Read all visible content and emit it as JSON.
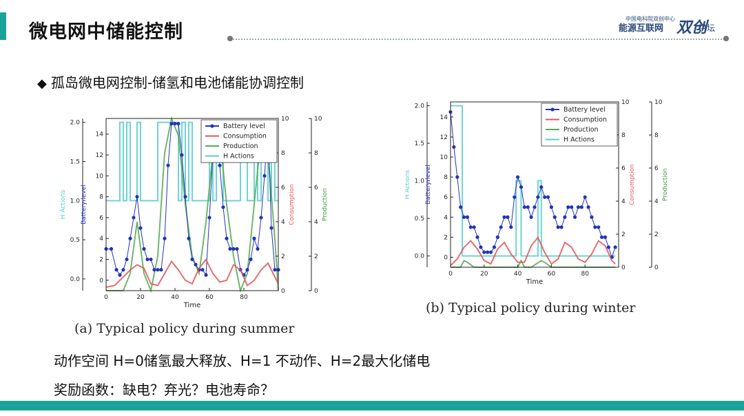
{
  "slide": {
    "title": "微电网中储能控制",
    "bullet": "孤岛微电网控制-储氢和电池储能协调控制",
    "line1": "动作空间 H=0储氢最大释放、H=1 不动作、H=2最大化储电",
    "line2": "奖励函数：缺电？弃光？电池寿命？",
    "colors": {
      "accent": "#1aa39a",
      "bottom_bar": "#1aa39a"
    }
  },
  "logo": {
    "small": "中国电科院双创中心",
    "main": "能源互联网",
    "big": "双创",
    "tail": "讲坛"
  },
  "captions": {
    "summer": "(a) Typical policy during summer",
    "winter": "(b) Typical policy during winter"
  },
  "chart_data": [
    {
      "type": "line",
      "caption": "(a) Typical policy during summer",
      "xlabel": "Time",
      "xlim": [
        0,
        100
      ],
      "xticks": [
        0,
        20,
        40,
        60,
        80
      ],
      "axes": [
        {
          "label": "H Actions",
          "ticks": [
            "0.0",
            "0.5",
            "1.0",
            "1.5",
            "2.0"
          ],
          "lim": [
            -0.15,
            2.05
          ]
        },
        {
          "label": "Battery level",
          "ticks": [
            "0",
            "2",
            "4",
            "6",
            "8",
            "10",
            "12",
            "14"
          ],
          "lim": [
            -1,
            15.5
          ]
        },
        {
          "label": "Consumption",
          "ticks": [
            "0",
            "2",
            "4",
            "6",
            "8",
            "10"
          ],
          "lim": [
            0,
            10
          ]
        },
        {
          "label": "Production",
          "ticks": [
            "0",
            "2",
            "4",
            "6",
            "8",
            "10"
          ],
          "lim": [
            0,
            10
          ]
        }
      ],
      "legend": [
        "Battery level",
        "Consumption",
        "Production",
        "H Actions"
      ],
      "legend_position": "top-right",
      "series": [
        {
          "name": "Battery level",
          "color": "#2233bb",
          "axis": 1,
          "x": [
            0,
            3,
            6,
            8,
            10,
            12,
            14,
            16,
            18,
            20,
            22,
            24,
            26,
            28,
            30,
            32,
            34,
            36,
            38,
            40,
            42,
            44,
            46,
            48,
            50,
            52,
            54,
            56,
            58,
            60,
            62,
            64,
            66,
            68,
            70,
            72,
            74,
            76,
            78,
            80,
            82,
            84,
            86,
            88,
            90,
            92,
            94,
            96,
            98,
            100
          ],
          "y": [
            3,
            3,
            1,
            0.5,
            1,
            2,
            4,
            6,
            8,
            5,
            3,
            2,
            2,
            1,
            1,
            1,
            4,
            11,
            15,
            15,
            15,
            12,
            8,
            4,
            2,
            1.5,
            1,
            1,
            0.5,
            6,
            12,
            15,
            11,
            7,
            4,
            3,
            3,
            3,
            1,
            0.5,
            1,
            2,
            4,
            3,
            6,
            10,
            15,
            5,
            1,
            1
          ]
        },
        {
          "name": "Consumption",
          "color": "#e05555",
          "axis": 2,
          "x": [
            0,
            5,
            10,
            14,
            18,
            22,
            26,
            30,
            34,
            38,
            42,
            46,
            50,
            54,
            58,
            62,
            66,
            70,
            74,
            78,
            82,
            86,
            90,
            94,
            98,
            100
          ],
          "y": [
            0.2,
            0.3,
            0.8,
            1.2,
            1.5,
            1.3,
            0.4,
            0.3,
            1.0,
            1.7,
            1.2,
            0.6,
            0.4,
            1.3,
            1.8,
            1.0,
            0.5,
            0.6,
            1.5,
            1.2,
            0.3,
            0.6,
            1.2,
            1.6,
            0.8,
            0.4
          ]
        },
        {
          "name": "Production",
          "color": "#55aa55",
          "axis": 3,
          "x": [
            0,
            10,
            14,
            18,
            22,
            26,
            30,
            34,
            38,
            42,
            46,
            50,
            54,
            58,
            62,
            66,
            70,
            74,
            78,
            82,
            86,
            90,
            94,
            98,
            100
          ],
          "y": [
            0,
            0,
            1,
            4,
            1,
            0,
            2,
            8,
            10,
            9,
            5,
            2,
            1,
            4,
            8,
            9,
            5,
            2,
            0,
            1,
            5,
            9,
            8,
            3,
            0
          ]
        },
        {
          "name": "H Actions",
          "color": "#55cccc",
          "axis": 0,
          "x": [
            0,
            4,
            6,
            8,
            10,
            12,
            14,
            18,
            20,
            22,
            24,
            26,
            28,
            30,
            32,
            34,
            36,
            38,
            40,
            42,
            44,
            46,
            48,
            50,
            52,
            54,
            56,
            58,
            60,
            62,
            64,
            66,
            68,
            70,
            72,
            74,
            76,
            78,
            80,
            82,
            84,
            86,
            88,
            90,
            92,
            94,
            96,
            98,
            100
          ],
          "y": [
            1,
            1,
            1,
            2,
            1,
            2,
            1,
            2,
            1,
            1,
            1,
            1,
            1,
            2,
            2,
            2,
            2,
            2,
            2,
            1,
            2,
            1,
            2,
            1,
            1,
            1,
            1,
            1,
            2,
            1,
            2,
            2,
            1,
            1,
            1,
            1,
            1,
            2,
            2,
            1,
            1,
            2,
            1,
            2,
            2,
            1,
            2,
            1,
            1
          ]
        }
      ]
    },
    {
      "type": "line",
      "caption": "(b) Typical policy during winter",
      "xlabel": "Time",
      "xlim": [
        0,
        100
      ],
      "xticks": [
        0,
        20,
        40,
        60,
        80
      ],
      "axes": [
        {
          "label": "H Actions",
          "ticks": [
            "0.0",
            "0.5",
            "1.0",
            "1.5",
            "2.0"
          ],
          "lim": [
            -0.15,
            2.05
          ]
        },
        {
          "label": "Battery level",
          "ticks": [
            "0",
            "2",
            "4",
            "6",
            "8",
            "10",
            "12",
            "14"
          ],
          "lim": [
            -1,
            15.5
          ]
        },
        {
          "label": "Consumption",
          "ticks": [
            "0",
            "2",
            "4",
            "6",
            "8",
            "10"
          ],
          "lim": [
            0,
            10
          ]
        },
        {
          "label": "Production",
          "ticks": [
            "0",
            "2",
            "4",
            "6",
            "8",
            "10"
          ],
          "lim": [
            0,
            10
          ]
        }
      ],
      "legend": [
        "Battery level",
        "Consumption",
        "Production",
        "H Actions"
      ],
      "legend_position": "top-right",
      "series": [
        {
          "name": "Battery level",
          "color": "#2233bb",
          "axis": 1,
          "x": [
            0,
            2,
            4,
            6,
            8,
            10,
            12,
            14,
            16,
            18,
            20,
            22,
            24,
            26,
            28,
            30,
            32,
            34,
            36,
            38,
            40,
            42,
            44,
            46,
            48,
            50,
            52,
            54,
            56,
            58,
            60,
            62,
            64,
            66,
            68,
            70,
            72,
            74,
            76,
            78,
            80,
            82,
            84,
            86,
            88,
            90,
            92,
            94,
            96,
            98
          ],
          "y": [
            14.5,
            11,
            8,
            5,
            4,
            4,
            3,
            3,
            2,
            1,
            0.5,
            0.5,
            0.5,
            1,
            2,
            3,
            4,
            4,
            3,
            6,
            8,
            7,
            5,
            5,
            4,
            5,
            6,
            7,
            6,
            6,
            5,
            4,
            3,
            3,
            4,
            5,
            5,
            4,
            5,
            5,
            6,
            5,
            4,
            3,
            3,
            2,
            2,
            1,
            0,
            1
          ]
        },
        {
          "name": "Consumption",
          "color": "#e05555",
          "axis": 2,
          "x": [
            0,
            4,
            8,
            12,
            16,
            20,
            24,
            28,
            32,
            36,
            40,
            44,
            48,
            52,
            56,
            60,
            64,
            68,
            72,
            76,
            80,
            84,
            88,
            92,
            96,
            98
          ],
          "y": [
            0.1,
            0.5,
            1.2,
            1.6,
            1.1,
            0.4,
            0.2,
            1.1,
            1.5,
            0.8,
            0.3,
            0.3,
            1.3,
            1.8,
            0.9,
            0.2,
            0.5,
            1.5,
            1.2,
            0.5,
            0.3,
            0.8,
            1.6,
            1.3,
            0.4,
            0.2
          ]
        },
        {
          "name": "Production",
          "color": "#55aa55",
          "axis": 3,
          "x": [
            0,
            6,
            8,
            10,
            14,
            40,
            42,
            44,
            48,
            54,
            56,
            60,
            98
          ],
          "y": [
            0,
            0,
            0.4,
            0.3,
            0,
            0,
            0.4,
            0,
            0,
            0.4,
            0.3,
            0,
            0
          ]
        },
        {
          "name": "H Actions",
          "color": "#55cccc",
          "axis": 0,
          "x": [
            0,
            1,
            2,
            3,
            4,
            5,
            6,
            7,
            8,
            9,
            10,
            12,
            20,
            30,
            38,
            39,
            40,
            42,
            44,
            46,
            48,
            50,
            52,
            53,
            54,
            56,
            58,
            60,
            62,
            70,
            80,
            90,
            98
          ],
          "y": [
            2,
            2,
            2,
            2,
            2,
            2,
            2,
            0,
            0,
            0,
            0,
            0,
            0,
            0,
            0,
            1,
            1,
            0,
            0,
            0,
            0,
            0,
            1,
            1,
            0,
            0,
            0,
            0,
            0,
            0,
            0,
            0,
            0
          ]
        }
      ]
    }
  ]
}
